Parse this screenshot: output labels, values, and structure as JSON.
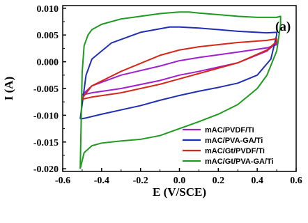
{
  "chart_data": {
    "type": "line",
    "panel_label": "(a)",
    "xlabel": "E (V/SCE)",
    "ylabel": "I (A)",
    "xlim": [
      -0.6,
      0.6
    ],
    "ylim": [
      -0.0205,
      0.0105
    ],
    "xticks": [
      -0.6,
      -0.4,
      -0.2,
      0.0,
      0.2,
      0.4,
      0.6
    ],
    "xtick_labels": [
      "-0.6",
      "-0.4",
      "-0.2",
      "0.0",
      "0.2",
      "0.4",
      "0.6"
    ],
    "yticks": [
      -0.02,
      -0.015,
      -0.01,
      -0.005,
      0.0,
      0.005,
      0.01
    ],
    "ytick_labels": [
      "-0.020",
      "-0.015",
      "-0.010",
      "-0.005",
      "0.000",
      "0.005",
      "0.010"
    ],
    "legend_position": "bottom-right",
    "series": [
      {
        "name": "mAC/PVDF/Ti",
        "color": "#a020d0",
        "x": [
          -0.5,
          -0.45,
          -0.3,
          -0.1,
          0.0,
          0.1,
          0.3,
          0.45,
          0.5,
          0.5,
          0.45,
          0.3,
          0.1,
          0.0,
          -0.1,
          -0.3,
          -0.45,
          -0.5,
          -0.5
        ],
        "y": [
          -0.0062,
          -0.0045,
          -0.0025,
          -0.0008,
          0.0002,
          0.0008,
          0.0018,
          0.0026,
          0.0032,
          0.0036,
          0.002,
          -0.0002,
          -0.0018,
          -0.0025,
          -0.0035,
          -0.005,
          -0.0058,
          -0.0062,
          -0.0062
        ]
      },
      {
        "name": "mAC/PVA-GA/Ti",
        "color": "#1f2fb4",
        "x": [
          -0.51,
          -0.48,
          -0.45,
          -0.35,
          -0.2,
          -0.05,
          0.0,
          0.1,
          0.2,
          0.3,
          0.4,
          0.45,
          0.5,
          0.5,
          0.47,
          0.4,
          0.3,
          0.2,
          0.1,
          0.0,
          -0.1,
          -0.2,
          -0.3,
          -0.4,
          -0.48,
          -0.51
        ],
        "y": [
          -0.0107,
          -0.0025,
          0.0005,
          0.0035,
          0.0055,
          0.0065,
          0.0065,
          0.0063,
          0.006,
          0.0057,
          0.0055,
          0.0054,
          0.0055,
          0.005,
          0.0005,
          -0.0025,
          -0.004,
          -0.0048,
          -0.0055,
          -0.0063,
          -0.0072,
          -0.0082,
          -0.009,
          -0.0098,
          -0.0105,
          -0.0107
        ]
      },
      {
        "name": "mAC/Gt/PVDF/Ti",
        "color": "#d62718",
        "x": [
          -0.5,
          -0.45,
          -0.3,
          -0.1,
          0.0,
          0.1,
          0.3,
          0.45,
          0.5,
          0.5,
          0.45,
          0.3,
          0.1,
          0.0,
          -0.1,
          -0.3,
          -0.45,
          -0.5,
          -0.5
        ],
        "y": [
          -0.0068,
          -0.0045,
          -0.0018,
          0.0012,
          0.0022,
          0.0028,
          0.0036,
          0.004,
          0.0043,
          0.0038,
          0.0022,
          -0.0002,
          -0.0022,
          -0.0032,
          -0.0042,
          -0.0058,
          -0.0066,
          -0.007,
          -0.0068
        ]
      },
      {
        "name": "mAC/Gt/PVA-GA/Ti",
        "color": "#1e9a1e",
        "x": [
          -0.51,
          -0.5,
          -0.49,
          -0.47,
          -0.45,
          -0.4,
          -0.3,
          -0.2,
          -0.1,
          0.0,
          0.05,
          0.1,
          0.2,
          0.3,
          0.4,
          0.5,
          0.52,
          0.52,
          0.5,
          0.45,
          0.4,
          0.3,
          0.2,
          0.1,
          0.0,
          -0.1,
          -0.2,
          -0.3,
          -0.4,
          -0.45,
          -0.49,
          -0.51
        ],
        "y": [
          -0.02,
          -0.002,
          0.003,
          0.005,
          0.006,
          0.007,
          0.008,
          0.0085,
          0.009,
          0.0093,
          0.0093,
          0.0091,
          0.0088,
          0.0085,
          0.0083,
          0.0083,
          0.0085,
          0.007,
          0.002,
          -0.0025,
          -0.005,
          -0.008,
          -0.0098,
          -0.0112,
          -0.0125,
          -0.0138,
          -0.0145,
          -0.0148,
          -0.0152,
          -0.0157,
          -0.017,
          -0.02
        ]
      }
    ]
  }
}
